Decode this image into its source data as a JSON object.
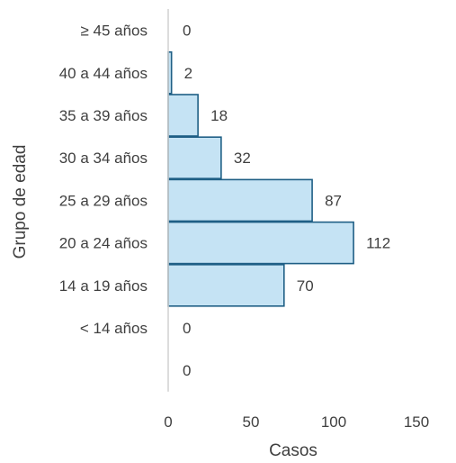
{
  "chart_data": {
    "type": "bar",
    "orientation": "horizontal",
    "categories": [
      "≥ 45 años",
      "40 a 44 años",
      "35 a 39 años",
      "30 a 34 años",
      "25 a 29 años",
      "20 a 24 años",
      "14 a 19 años",
      "< 14 años",
      ""
    ],
    "values": [
      0,
      2,
      18,
      32,
      87,
      112,
      70,
      0,
      0
    ],
    "xlabel": "Casos",
    "ylabel": "Grupo de edad",
    "xlim": [
      0,
      150
    ],
    "xticks": [
      "0",
      "50",
      "100",
      "150"
    ],
    "grid": false,
    "legend": "none",
    "colors": {
      "bar_fill": "#c5e3f4",
      "bar_stroke": "#1f5f85",
      "axis": "#d0d0d0",
      "text": "#404040"
    }
  }
}
